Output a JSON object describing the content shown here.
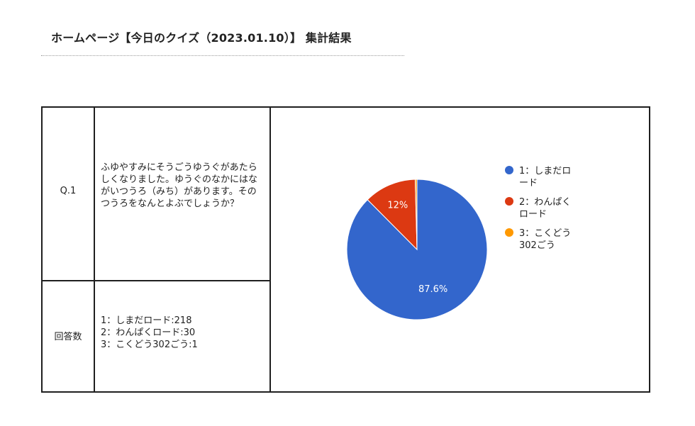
{
  "page": {
    "title": "ホームページ【今日のクイズ（2023.01.10）】 集計結果"
  },
  "table": {
    "question_label": "Q.1",
    "question_text": "ふゆやすみにそうごうゆうぐがあたらしくなりました。ゆうぐのなかにはながいつうろ（みち）があります。そのつうろをなんとよぶでしょうか？",
    "answers_label": "回答数",
    "answer_lines": [
      "1：しまだロード:218",
      "2：わんぱくロード:30",
      "3：こくどう302ごう:1"
    ]
  },
  "chart_data": {
    "type": "pie",
    "slices": [
      {
        "label": "1：しまだロード",
        "legend_lines": [
          "1：しまだロ",
          "ード"
        ],
        "value": 218,
        "percent_label": "87.6%",
        "color": "#3366cc"
      },
      {
        "label": "2：わんぱくロード",
        "legend_lines": [
          "2：わんぱく",
          "ロード"
        ],
        "value": 30,
        "percent_label": "12%",
        "color": "#dc3912"
      },
      {
        "label": "3：こくどう302ごう",
        "legend_lines": [
          "3：こくどう",
          "302ごう"
        ],
        "value": 1,
        "percent_label": "",
        "color": "#ff9900"
      }
    ],
    "legend_position": "right"
  }
}
